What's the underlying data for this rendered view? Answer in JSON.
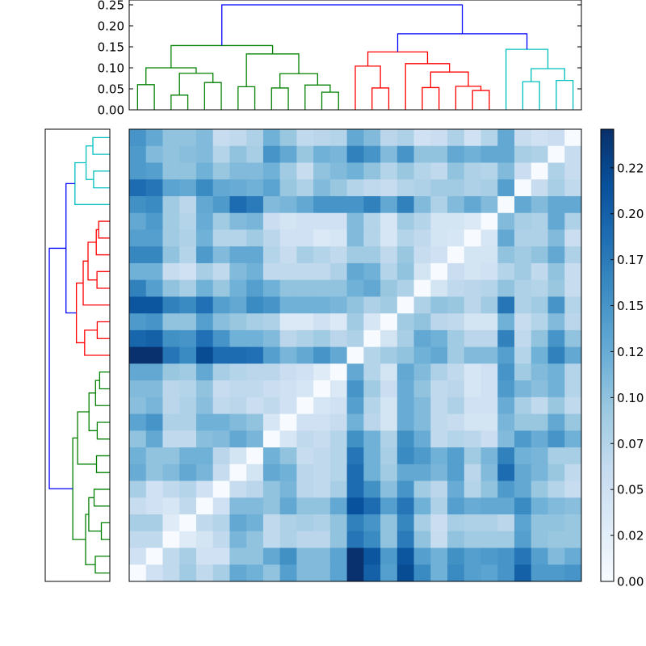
{
  "chart_data": {
    "type": "heatmap",
    "title": "",
    "xlabel": "",
    "ylabel": "",
    "colormap": "Blues",
    "color_range": [
      0.0,
      0.246
    ],
    "grid": false,
    "row_order_note_free": true,
    "matrix": [
      [
        0.15,
        0.13,
        0.1,
        0.1,
        0.11,
        0.06,
        0.065,
        0.08,
        0.12,
        0.095,
        0.065,
        0.07,
        0.075,
        0.13,
        0.11,
        0.07,
        0.08,
        0.05,
        0.055,
        0.08,
        0.05,
        0.075,
        0.13,
        0.06,
        0.05,
        0.055,
        0
      ],
      [
        0.145,
        0.11,
        0.1,
        0.105,
        0.11,
        0.075,
        0.1,
        0.085,
        0.15,
        0.13,
        0.095,
        0.12,
        0.115,
        0.17,
        0.15,
        0.11,
        0.15,
        0.1,
        0.1,
        0.13,
        0.12,
        0.13,
        0.13,
        0.085,
        0.08,
        0,
        0.06
      ],
      [
        0.145,
        0.14,
        0.1,
        0.1,
        0.12,
        0.095,
        0.11,
        0.11,
        0.12,
        0.09,
        0.06,
        0.1,
        0.11,
        0.12,
        0.1,
        0.075,
        0.095,
        0.075,
        0.065,
        0.1,
        0.08,
        0.075,
        0.11,
        0.055,
        0,
        0.08,
        0.06
      ],
      [
        0.19,
        0.18,
        0.135,
        0.13,
        0.16,
        0.13,
        0.125,
        0.12,
        0.135,
        0.095,
        0.08,
        0.11,
        0.095,
        0.075,
        0.065,
        0.06,
        0.075,
        0.08,
        0.09,
        0.09,
        0.08,
        0.085,
        0.14,
        0,
        0.06,
        0.085,
        0.065
      ],
      [
        0.155,
        0.16,
        0.09,
        0.07,
        0.13,
        0.145,
        0.19,
        0.175,
        0.11,
        0.115,
        0.13,
        0.15,
        0.15,
        0.15,
        0.17,
        0.13,
        0.17,
        0.11,
        0.08,
        0.11,
        0.13,
        0.11,
        0,
        0.13,
        0.11,
        0.13,
        0.13
      ],
      [
        0.13,
        0.145,
        0.09,
        0.075,
        0.125,
        0.09,
        0.11,
        0.115,
        0.055,
        0.045,
        0.05,
        0.05,
        0.05,
        0.11,
        0.075,
        0.04,
        0.09,
        0.075,
        0.045,
        0.045,
        0.035,
        0,
        0.11,
        0.085,
        0.08,
        0.13,
        0.08
      ],
      [
        0.14,
        0.14,
        0.09,
        0.08,
        0.12,
        0.075,
        0.075,
        0.09,
        0.07,
        0.05,
        0.05,
        0.035,
        0.04,
        0.11,
        0.075,
        0.04,
        0.075,
        0.065,
        0.045,
        0.04,
        0,
        0.04,
        0.13,
        0.08,
        0.08,
        0.11,
        0.055
      ],
      [
        0.165,
        0.165,
        0.1,
        0.075,
        0.145,
        0.11,
        0.13,
        0.13,
        0.075,
        0.06,
        0.085,
        0.075,
        0.065,
        0.09,
        0.09,
        0.065,
        0.095,
        0.06,
        0.05,
        0,
        0.045,
        0.045,
        0.1,
        0.09,
        0.1,
        0.13,
        0.08
      ],
      [
        0.12,
        0.12,
        0.06,
        0.05,
        0.085,
        0.065,
        0.11,
        0.12,
        0.065,
        0.065,
        0.065,
        0.065,
        0.08,
        0.13,
        0.12,
        0.075,
        0.1,
        0.045,
        0,
        0.055,
        0.045,
        0.05,
        0.075,
        0.09,
        0.065,
        0.1,
        0.06
      ],
      [
        0.17,
        0.14,
        0.1,
        0.085,
        0.12,
        0.095,
        0.12,
        0.14,
        0.12,
        0.1,
        0.1,
        0.1,
        0.1,
        0.12,
        0.13,
        0.095,
        0.08,
        0,
        0.045,
        0.065,
        0.07,
        0.075,
        0.1,
        0.08,
        0.075,
        0.095,
        0.06
      ],
      [
        0.21,
        0.21,
        0.17,
        0.16,
        0.185,
        0.14,
        0.13,
        0.16,
        0.15,
        0.12,
        0.12,
        0.12,
        0.115,
        0.1,
        0.08,
        0.09,
        0,
        0.08,
        0.1,
        0.095,
        0.07,
        0.09,
        0.18,
        0.08,
        0.09,
        0.15,
        0.075
      ],
      [
        0.145,
        0.15,
        0.1,
        0.1,
        0.14,
        0.105,
        0.095,
        0.085,
        0.08,
        0.035,
        0.035,
        0.05,
        0.035,
        0.09,
        0.04,
        0,
        0.09,
        0.1,
        0.07,
        0.065,
        0.045,
        0.045,
        0.12,
        0.06,
        0.075,
        0.11,
        0.07
      ],
      [
        0.195,
        0.2,
        0.155,
        0.15,
        0.185,
        0.15,
        0.12,
        0.12,
        0.11,
        0.07,
        0.08,
        0.09,
        0.07,
        0.08,
        0,
        0.045,
        0.085,
        0.13,
        0.12,
        0.09,
        0.07,
        0.07,
        0.17,
        0.065,
        0.1,
        0.15,
        0.1
      ],
      [
        0.245,
        0.245,
        0.18,
        0.16,
        0.22,
        0.19,
        0.19,
        0.185,
        0.14,
        0.115,
        0.13,
        0.15,
        0.13,
        0,
        0.075,
        0.09,
        0.1,
        0.12,
        0.13,
        0.09,
        0.11,
        0.11,
        0.14,
        0.075,
        0.12,
        0.17,
        0.13
      ],
      [
        0.13,
        0.13,
        0.095,
        0.09,
        0.13,
        0.085,
        0.075,
        0.07,
        0.07,
        0.055,
        0.05,
        0.03,
        0,
        0.13,
        0.075,
        0.045,
        0.13,
        0.11,
        0.08,
        0.065,
        0.04,
        0.05,
        0.15,
        0.09,
        0.11,
        0.12,
        0.075
      ],
      [
        0.11,
        0.11,
        0.07,
        0.075,
        0.1,
        0.06,
        0.065,
        0.065,
        0.055,
        0.05,
        0.04,
        0,
        0.035,
        0.15,
        0.09,
        0.055,
        0.125,
        0.1,
        0.065,
        0.07,
        0.04,
        0.05,
        0.145,
        0.115,
        0.105,
        0.12,
        0.075
      ],
      [
        0.105,
        0.115,
        0.07,
        0.08,
        0.105,
        0.065,
        0.07,
        0.055,
        0.065,
        0.05,
        0,
        0.04,
        0.05,
        0.14,
        0.075,
        0.045,
        0.125,
        0.11,
        0.065,
        0.08,
        0.05,
        0.05,
        0.125,
        0.085,
        0.065,
        0.095,
        0.065
      ],
      [
        0.135,
        0.15,
        0.08,
        0.08,
        0.12,
        0.12,
        0.11,
        0.1,
        0.04,
        0,
        0.05,
        0.05,
        0.06,
        0.12,
        0.07,
        0.045,
        0.125,
        0.11,
        0.065,
        0.06,
        0.045,
        0.045,
        0.115,
        0.095,
        0.095,
        0.13,
        0.095
      ],
      [
        0.1,
        0.13,
        0.065,
        0.065,
        0.105,
        0.11,
        0.13,
        0.115,
        0,
        0.04,
        0.065,
        0.06,
        0.075,
        0.155,
        0.12,
        0.08,
        0.155,
        0.125,
        0.065,
        0.075,
        0.07,
        0.055,
        0.11,
        0.145,
        0.125,
        0.15,
        0.12
      ],
      [
        0.12,
        0.1,
        0.1,
        0.12,
        0.12,
        0.07,
        0.045,
        0,
        0.12,
        0.1,
        0.06,
        0.065,
        0.075,
        0.18,
        0.12,
        0.085,
        0.16,
        0.145,
        0.12,
        0.14,
        0.09,
        0.115,
        0.17,
        0.12,
        0.115,
        0.085,
        0.085
      ],
      [
        0.125,
        0.1,
        0.11,
        0.13,
        0.115,
        0.06,
        0,
        0.045,
        0.13,
        0.12,
        0.07,
        0.065,
        0.075,
        0.19,
        0.12,
        0.09,
        0.13,
        0.13,
        0.115,
        0.14,
        0.07,
        0.11,
        0.19,
        0.13,
        0.115,
        0.095,
        0.065
      ],
      [
        0.085,
        0.05,
        0.065,
        0.075,
        0.05,
        0,
        0.06,
        0.07,
        0.1,
        0.115,
        0.07,
        0.065,
        0.085,
        0.19,
        0.155,
        0.105,
        0.15,
        0.09,
        0.07,
        0.125,
        0.075,
        0.1,
        0.145,
        0.13,
        0.095,
        0.075,
        0.06
      ],
      [
        0.06,
        0.05,
        0.04,
        0.065,
        0,
        0.05,
        0.11,
        0.11,
        0.1,
        0.13,
        0.1,
        0.1,
        0.13,
        0.215,
        0.19,
        0.14,
        0.18,
        0.12,
        0.08,
        0.14,
        0.125,
        0.13,
        0.13,
        0.16,
        0.12,
        0.11,
        0.105
      ],
      [
        0.085,
        0.085,
        0.03,
        0,
        0.065,
        0.075,
        0.13,
        0.12,
        0.065,
        0.08,
        0.085,
        0.08,
        0.1,
        0.17,
        0.15,
        0.1,
        0.165,
        0.085,
        0.055,
        0.085,
        0.08,
        0.08,
        0.07,
        0.135,
        0.1,
        0.1,
        0.095
      ],
      [
        0.065,
        0.065,
        0,
        0.03,
        0.045,
        0.065,
        0.115,
        0.1,
        0.065,
        0.08,
        0.07,
        0.07,
        0.1,
        0.18,
        0.16,
        0.1,
        0.175,
        0.1,
        0.06,
        0.1,
        0.09,
        0.09,
        0.09,
        0.14,
        0.1,
        0.095,
        0.095
      ],
      [
        0.05,
        0,
        0.065,
        0.085,
        0.05,
        0.05,
        0.1,
        0.1,
        0.13,
        0.155,
        0.11,
        0.11,
        0.135,
        0.245,
        0.21,
        0.145,
        0.21,
        0.14,
        0.12,
        0.155,
        0.14,
        0.145,
        0.15,
        0.18,
        0.14,
        0.11,
        0.125
      ],
      [
        0,
        0.05,
        0.065,
        0.09,
        0.065,
        0.085,
        0.13,
        0.12,
        0.1,
        0.14,
        0.11,
        0.11,
        0.135,
        0.245,
        0.2,
        0.14,
        0.22,
        0.16,
        0.12,
        0.16,
        0.14,
        0.135,
        0.15,
        0.2,
        0.145,
        0.145,
        0.15
      ]
    ],
    "colorbar": {
      "ticks": [
        0.0,
        0.025,
        0.05,
        0.075,
        0.1,
        0.125,
        0.15,
        0.175,
        0.2,
        0.225
      ],
      "tick_labels": [
        "0.00",
        "0.02",
        "0.05",
        "0.07",
        "0.10",
        "0.12",
        "0.15",
        "0.17",
        "0.20",
        "0.22"
      ]
    },
    "dendrogram": {
      "leaf_count": 27,
      "y_range": [
        0,
        0.2615
      ],
      "yticks": [
        0,
        0.05,
        0.1,
        0.15,
        0.2,
        0.25
      ],
      "ytick_labels": [
        "0.00",
        "0.05",
        "0.10",
        "0.15",
        "0.20",
        "0.25"
      ],
      "colors": {
        "green": "#008000",
        "red": "#ff0000",
        "cyan": "#00bfbf",
        "blue": "#0000ff"
      },
      "merges": [
        {
          "a": 0,
          "b": 1,
          "h": 0.06,
          "c": "green"
        },
        {
          "a": 2,
          "b": 3,
          "h": 0.035,
          "c": "green"
        },
        {
          "a": 4,
          "b": 5,
          "h": 0.065,
          "c": "green"
        },
        {
          "a": 28,
          "b": 29,
          "h": 0.087,
          "c": "green"
        },
        {
          "a": 27,
          "b": 30,
          "h": 0.1,
          "c": "green"
        },
        {
          "a": 6,
          "b": 7,
          "h": 0.055,
          "c": "green"
        },
        {
          "a": 8,
          "b": 9,
          "h": 0.052,
          "c": "green"
        },
        {
          "a": 11,
          "b": 12,
          "h": 0.042,
          "c": "green"
        },
        {
          "a": 10,
          "b": 34,
          "h": 0.059,
          "c": "green"
        },
        {
          "a": 33,
          "b": 35,
          "h": 0.086,
          "c": "green"
        },
        {
          "a": 32,
          "b": 36,
          "h": 0.133,
          "c": "green"
        },
        {
          "a": 31,
          "b": 37,
          "h": 0.153,
          "c": "green"
        },
        {
          "a": 14,
          "b": 15,
          "h": 0.052,
          "c": "red"
        },
        {
          "a": 13,
          "b": 39,
          "h": 0.104,
          "c": "red"
        },
        {
          "a": 17,
          "b": 18,
          "h": 0.053,
          "c": "red"
        },
        {
          "a": 20,
          "b": 21,
          "h": 0.046,
          "c": "red"
        },
        {
          "a": 19,
          "b": 42,
          "h": 0.056,
          "c": "red"
        },
        {
          "a": 41,
          "b": 43,
          "h": 0.09,
          "c": "red"
        },
        {
          "a": 16,
          "b": 44,
          "h": 0.11,
          "c": "red"
        },
        {
          "a": 40,
          "b": 45,
          "h": 0.138,
          "c": "red"
        },
        {
          "a": 23,
          "b": 24,
          "h": 0.067,
          "c": "cyan"
        },
        {
          "a": 25,
          "b": 26,
          "h": 0.07,
          "c": "cyan"
        },
        {
          "a": 47,
          "b": 48,
          "h": 0.098,
          "c": "cyan"
        },
        {
          "a": 22,
          "b": 49,
          "h": 0.144,
          "c": "cyan"
        },
        {
          "a": 46,
          "b": 50,
          "h": 0.181,
          "c": "blue"
        },
        {
          "a": 38,
          "b": 51,
          "h": 0.25,
          "c": "blue"
        }
      ]
    }
  }
}
